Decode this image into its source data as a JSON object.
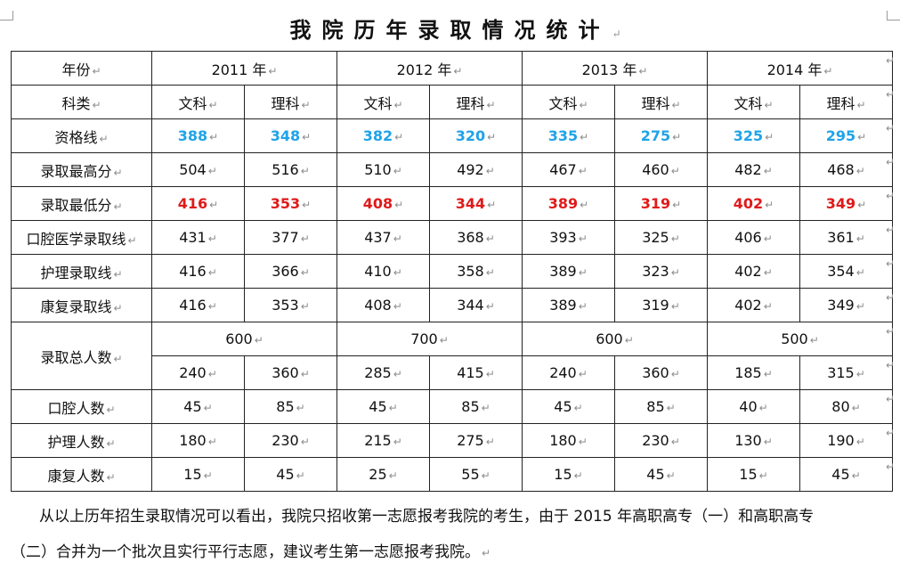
{
  "title": "我院历年录取情况统计",
  "para_mark": "↵",
  "header": {
    "year_label": "年份",
    "years": [
      "2011 年",
      "2012 年",
      "2013 年",
      "2014 年"
    ],
    "category_label": "科类",
    "subjects": [
      "文科",
      "理科"
    ]
  },
  "rows": [
    {
      "label": "资格线",
      "style": "blue",
      "values": [
        "388",
        "348",
        "382",
        "320",
        "335",
        "275",
        "325",
        "295"
      ]
    },
    {
      "label": "录取最高分",
      "style": "normal",
      "values": [
        "504",
        "516",
        "510",
        "492",
        "467",
        "460",
        "482",
        "468"
      ]
    },
    {
      "label": "录取最低分",
      "style": "red",
      "values": [
        "416",
        "353",
        "408",
        "344",
        "389",
        "319",
        "402",
        "349"
      ]
    },
    {
      "label": "口腔医学录取线",
      "style": "normal",
      "values": [
        "431",
        "377",
        "437",
        "368",
        "393",
        "325",
        "406",
        "361"
      ]
    },
    {
      "label": "护理录取线",
      "style": "normal",
      "values": [
        "416",
        "366",
        "410",
        "358",
        "389",
        "323",
        "402",
        "354"
      ]
    },
    {
      "label": "康复录取线",
      "style": "normal",
      "values": [
        "416",
        "353",
        "408",
        "344",
        "389",
        "319",
        "402",
        "349"
      ]
    }
  ],
  "total": {
    "label": "录取总人数",
    "year_totals": [
      "600",
      "700",
      "600",
      "500"
    ],
    "values": [
      "240",
      "360",
      "285",
      "415",
      "240",
      "360",
      "185",
      "315"
    ]
  },
  "count_rows": [
    {
      "label": "口腔人数",
      "values": [
        "45",
        "85",
        "45",
        "85",
        "45",
        "85",
        "40",
        "80"
      ]
    },
    {
      "label": "护理人数",
      "values": [
        "180",
        "230",
        "215",
        "275",
        "180",
        "230",
        "130",
        "190"
      ]
    },
    {
      "label": "康复人数",
      "values": [
        "15",
        "45",
        "25",
        "55",
        "15",
        "45",
        "15",
        "45"
      ]
    }
  ],
  "paragraph": {
    "line1": "从以上历年招生录取情况可以看出，我院只招收第一志愿报考我院的考生，由于 2015 年高职高专（一）和高职高专",
    "line2": "（二）合并为一个批次且实行平行志愿，建议考生第一志愿报考我院。"
  },
  "colors": {
    "qualification": "#1fa3e8",
    "lowest_score": "#e01a1a"
  }
}
